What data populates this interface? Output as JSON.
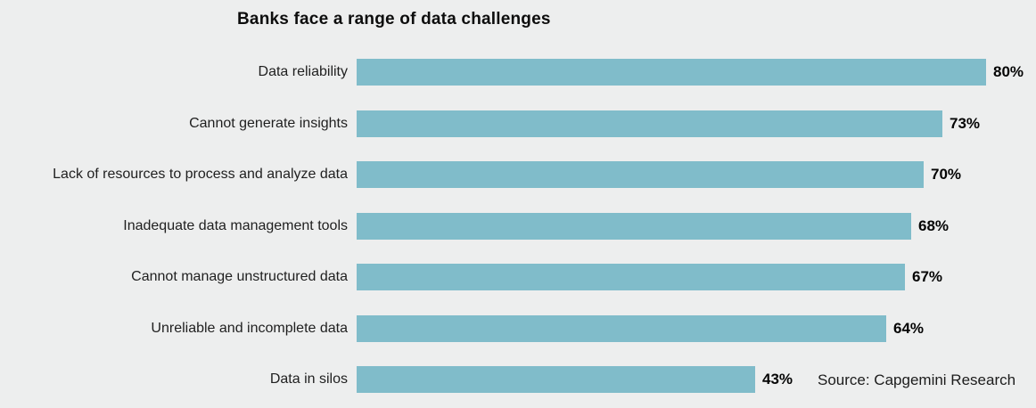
{
  "colors": {
    "bar": "#80bcca",
    "background": "#edeeee",
    "text": "#1a1a1a"
  },
  "chart_data": {
    "type": "bar",
    "orientation": "horizontal",
    "title": "Banks face a range of data challenges",
    "categories": [
      "Data reliability",
      "Cannot generate insights",
      "Lack of resources to process and analyze data",
      "Inadequate data management tools",
      "Cannot manage unstructured data",
      "Unreliable and incomplete data",
      "Data in silos"
    ],
    "values": [
      80,
      73,
      70,
      68,
      67,
      64,
      43
    ],
    "value_labels": [
      "80%",
      "73%",
      "70%",
      "68%",
      "67%",
      "64%",
      "43%"
    ],
    "unit": "%",
    "xlabel": "",
    "ylabel": "",
    "xlim": [
      -21,
      80
    ],
    "grid": false,
    "legend": false,
    "annotation": "Source: Capgemini Research"
  }
}
